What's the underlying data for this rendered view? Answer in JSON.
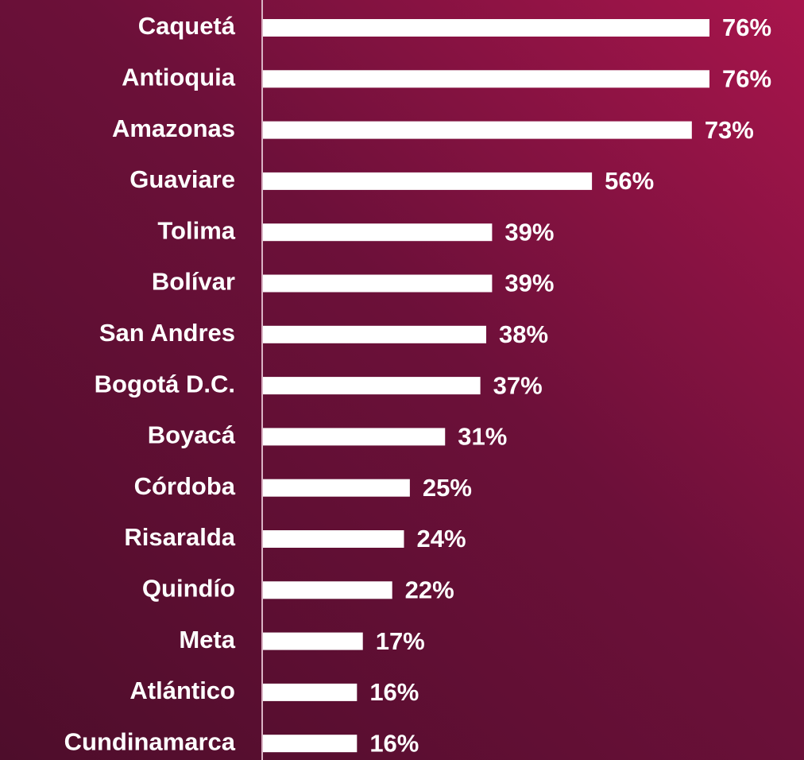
{
  "chart_data": {
    "type": "hbar",
    "categories": [
      "Caquetá",
      "Antioquia",
      "Amazonas",
      "Guaviare",
      "Tolima",
      "Bolívar",
      "San Andres",
      "Bogotá D.C.",
      "Boyacá",
      "Córdoba",
      "Risaralda",
      "Quindío",
      "Meta",
      "Atlántico",
      "Cundinamarca"
    ],
    "values": [
      76,
      76,
      73,
      56,
      39,
      39,
      38,
      37,
      31,
      25,
      24,
      22,
      17,
      16,
      16
    ],
    "value_labels": [
      "76%",
      "76%",
      "73%",
      "56%",
      "39%",
      "39%",
      "38%",
      "37%",
      "31%",
      "25%",
      "24%",
      "22%",
      "17%",
      "16%",
      "16%"
    ],
    "color": "#ffffff"
  }
}
